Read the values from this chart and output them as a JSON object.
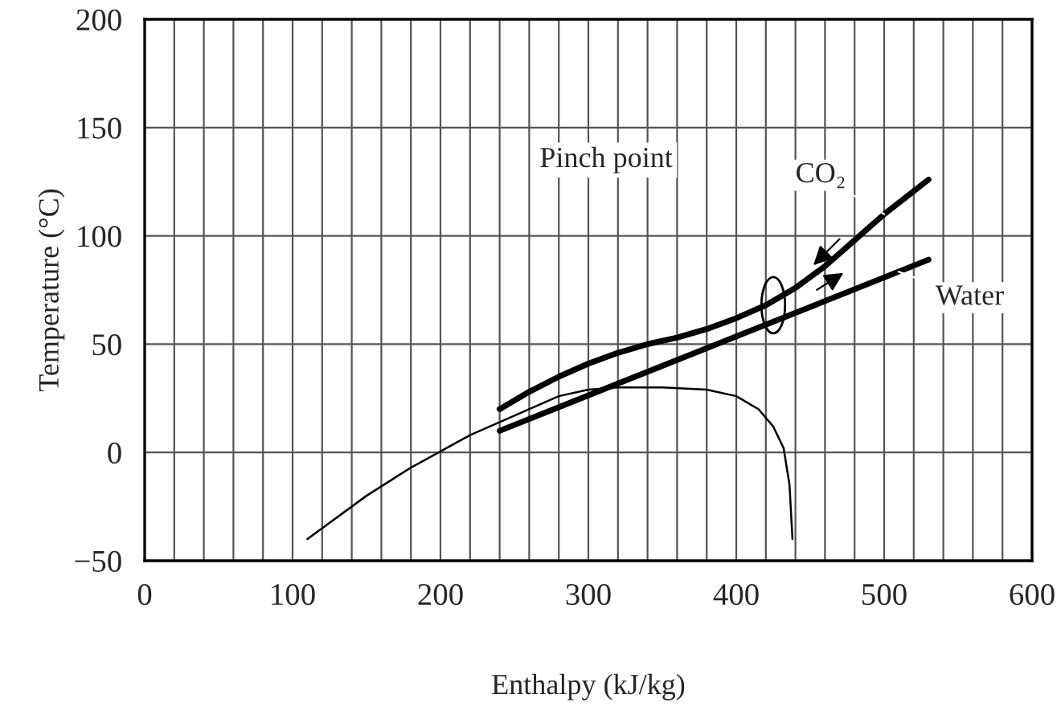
{
  "chart_data": {
    "type": "line",
    "xlabel": "Enthalpy (kJ/kg)",
    "ylabel": "Temperature (°C)",
    "xlim": [
      0,
      600
    ],
    "ylim": [
      -50,
      200
    ],
    "xticks": [
      0,
      {
        "value": 20,
        "label": null
      },
      {
        "value": 40,
        "label": null
      },
      {
        "value": 60,
        "label": null
      },
      {
        "value": 80,
        "label": null
      },
      100,
      {
        "value": 120,
        "label": null
      },
      {
        "value": 140,
        "label": null
      },
      {
        "value": 160,
        "label": null
      },
      {
        "value": 180,
        "label": null
      },
      200,
      {
        "value": 220,
        "label": null
      },
      {
        "value": 240,
        "label": null
      },
      {
        "value": 260,
        "label": null
      },
      {
        "value": 280,
        "label": null
      },
      300,
      {
        "value": 320,
        "label": null
      },
      {
        "value": 340,
        "label": null
      },
      {
        "value": 360,
        "label": null
      },
      {
        "value": 380,
        "label": null
      },
      400,
      {
        "value": 420,
        "label": null
      },
      {
        "value": 440,
        "label": null
      },
      {
        "value": 460,
        "label": null
      },
      {
        "value": 480,
        "label": null
      },
      500,
      {
        "value": 520,
        "label": null
      },
      {
        "value": 540,
        "label": null
      },
      {
        "value": 560,
        "label": null
      },
      {
        "value": 580,
        "label": null
      },
      600
    ],
    "yticks": [
      {
        "value": -50,
        "label": "−50"
      },
      0,
      50,
      100,
      150,
      200
    ],
    "grid": true,
    "legend": false,
    "series": [
      {
        "name": "CO₂",
        "color": "#000000",
        "x": [
          240,
          260,
          280,
          300,
          320,
          340,
          360,
          380,
          400,
          420,
          440,
          460,
          480,
          500,
          515,
          530
        ],
        "values": [
          20,
          28,
          35,
          41,
          46,
          50,
          53,
          57,
          62,
          68,
          76,
          86,
          98,
          110,
          118,
          126
        ]
      },
      {
        "name": "Water",
        "color": "#000000",
        "x": [
          240,
          530
        ],
        "values": [
          10,
          89
        ]
      },
      {
        "color": "#000000",
        "x": [
          110,
          150,
          180,
          220,
          250,
          280,
          300,
          320,
          350,
          380,
          400,
          415,
          425,
          432,
          436,
          438
        ],
        "values": [
          -40,
          -20,
          -7,
          8,
          17,
          26,
          29,
          30,
          30,
          29,
          26,
          20,
          12,
          2,
          -15,
          -40
        ]
      }
    ],
    "annotations": [
      "Pinch point"
    ]
  }
}
